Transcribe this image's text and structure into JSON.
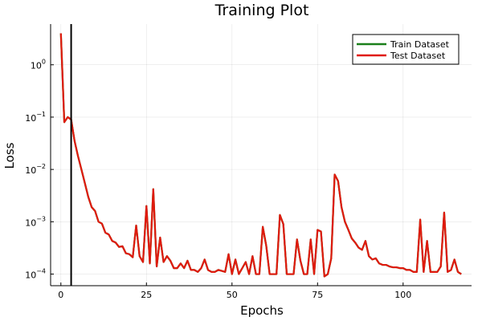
{
  "chart_data": {
    "type": "line",
    "title": "Training Plot",
    "xlabel": "Epochs",
    "ylabel": "Loss",
    "xlim": [
      -3,
      120
    ],
    "ylim": [
      6e-05,
      6
    ],
    "yscale": "log",
    "xticks": [
      0,
      25,
      50,
      75,
      100
    ],
    "xtick_labels": [
      "0",
      "25",
      "50",
      "75",
      "100"
    ],
    "yticks": [
      0.0001,
      0.001,
      0.01,
      0.1,
      1
    ],
    "ytick_labels": [
      {
        "base": "10",
        "exp": "−4"
      },
      {
        "base": "10",
        "exp": "−3"
      },
      {
        "base": "10",
        "exp": "−2"
      },
      {
        "base": "10",
        "exp": "−1"
      },
      {
        "base": "10",
        "exp": "0"
      }
    ],
    "grid": true,
    "legend_position": "top-right",
    "vline": {
      "x": 3,
      "color": "#000000"
    },
    "series": [
      {
        "name": "Train Dataset",
        "color": "#1a7f1a",
        "x": [
          0,
          1,
          2,
          3,
          4,
          5,
          6,
          7,
          8,
          9,
          10,
          11,
          12,
          13,
          14,
          15,
          16,
          17,
          18,
          19,
          20,
          21,
          22,
          23,
          24,
          25,
          26,
          27,
          28,
          29,
          30,
          31,
          32,
          33,
          34,
          35,
          36,
          37,
          38,
          39,
          40,
          41,
          42,
          43,
          44,
          45,
          46,
          47,
          48,
          49,
          50,
          51,
          52,
          53,
          54,
          55,
          56,
          57,
          58,
          59,
          60,
          61,
          62,
          63,
          64,
          65,
          66,
          67,
          68,
          69,
          70,
          71,
          72,
          73,
          74,
          75,
          76,
          77,
          78,
          79,
          80,
          81,
          82,
          83,
          84,
          85,
          86,
          87,
          88,
          89,
          90,
          91,
          92,
          93,
          94,
          95,
          96,
          97,
          98,
          99,
          100,
          101,
          102,
          103,
          104,
          105,
          106,
          107,
          108,
          109,
          110,
          111,
          112,
          113,
          114,
          115,
          116,
          117
        ],
        "y": [
          4.0,
          0.08,
          0.1,
          0.09,
          0.035,
          0.018,
          0.01,
          0.0055,
          0.003,
          0.0019,
          0.0016,
          0.001,
          0.00092,
          0.00062,
          0.00057,
          0.00043,
          0.0004,
          0.00033,
          0.00034,
          0.00025,
          0.00024,
          0.00021,
          0.00085,
          0.00022,
          0.00017,
          0.002,
          0.00016,
          0.0042,
          0.00014,
          0.0005,
          0.00017,
          0.00022,
          0.00018,
          0.00013,
          0.00013,
          0.00016,
          0.00013,
          0.00018,
          0.00012,
          0.00012,
          0.00011,
          0.00013,
          0.00019,
          0.00012,
          0.00011,
          0.00011,
          0.00012,
          0.000115,
          0.00011,
          0.00024,
          0.0001,
          0.00019,
          0.0001,
          0.00013,
          0.00017,
          0.0001,
          0.00022,
          0.0001,
          0.0001,
          0.0008,
          0.00035,
          0.0001,
          0.0001,
          0.0001,
          0.00135,
          0.0009,
          0.0001,
          0.0001,
          0.0001,
          0.00046,
          0.00018,
          0.0001,
          0.0001,
          0.00046,
          0.0001,
          0.0007,
          0.00065,
          9e-05,
          0.0001,
          0.0002,
          0.008,
          0.006,
          0.0019,
          0.001,
          0.0007,
          0.00048,
          0.0004,
          0.00032,
          0.00029,
          0.00043,
          0.00022,
          0.00019,
          0.0002,
          0.00016,
          0.00015,
          0.00015,
          0.00014,
          0.000135,
          0.000135,
          0.00013,
          0.00013,
          0.00012,
          0.00012,
          0.00011,
          0.00011,
          0.0011,
          0.00011,
          0.00043,
          0.00011,
          0.00011,
          0.00011,
          0.00014,
          0.0015,
          0.00011,
          0.00012,
          0.00019,
          0.00011,
          0.0001
        ]
      },
      {
        "name": "Test Dataset",
        "color": "#e01a0e",
        "x": [
          0,
          1,
          2,
          3,
          4,
          5,
          6,
          7,
          8,
          9,
          10,
          11,
          12,
          13,
          14,
          15,
          16,
          17,
          18,
          19,
          20,
          21,
          22,
          23,
          24,
          25,
          26,
          27,
          28,
          29,
          30,
          31,
          32,
          33,
          34,
          35,
          36,
          37,
          38,
          39,
          40,
          41,
          42,
          43,
          44,
          45,
          46,
          47,
          48,
          49,
          50,
          51,
          52,
          53,
          54,
          55,
          56,
          57,
          58,
          59,
          60,
          61,
          62,
          63,
          64,
          65,
          66,
          67,
          68,
          69,
          70,
          71,
          72,
          73,
          74,
          75,
          76,
          77,
          78,
          79,
          80,
          81,
          82,
          83,
          84,
          85,
          86,
          87,
          88,
          89,
          90,
          91,
          92,
          93,
          94,
          95,
          96,
          97,
          98,
          99,
          100,
          101,
          102,
          103,
          104,
          105,
          106,
          107,
          108,
          109,
          110,
          111,
          112,
          113,
          114,
          115,
          116,
          117
        ],
        "y": [
          4.0,
          0.08,
          0.1,
          0.09,
          0.035,
          0.018,
          0.01,
          0.0055,
          0.003,
          0.0019,
          0.0016,
          0.001,
          0.00092,
          0.00062,
          0.00057,
          0.00043,
          0.0004,
          0.00033,
          0.00034,
          0.00025,
          0.00024,
          0.00021,
          0.00085,
          0.00022,
          0.00017,
          0.002,
          0.00016,
          0.0042,
          0.00014,
          0.0005,
          0.00017,
          0.00022,
          0.00018,
          0.00013,
          0.00013,
          0.00016,
          0.00013,
          0.00018,
          0.00012,
          0.00012,
          0.00011,
          0.00013,
          0.00019,
          0.00012,
          0.00011,
          0.00011,
          0.00012,
          0.000115,
          0.00011,
          0.00024,
          0.0001,
          0.00019,
          0.0001,
          0.00013,
          0.00017,
          0.0001,
          0.00022,
          0.0001,
          0.0001,
          0.0008,
          0.00035,
          0.0001,
          0.0001,
          0.0001,
          0.00135,
          0.0009,
          0.0001,
          0.0001,
          0.0001,
          0.00046,
          0.00018,
          0.0001,
          0.0001,
          0.00046,
          0.0001,
          0.0007,
          0.00065,
          9e-05,
          0.0001,
          0.0002,
          0.008,
          0.006,
          0.0019,
          0.001,
          0.0007,
          0.00048,
          0.0004,
          0.00032,
          0.00029,
          0.00043,
          0.00022,
          0.00019,
          0.0002,
          0.00016,
          0.00015,
          0.00015,
          0.00014,
          0.000135,
          0.000135,
          0.00013,
          0.00013,
          0.00012,
          0.00012,
          0.00011,
          0.00011,
          0.0011,
          0.00011,
          0.00043,
          0.00011,
          0.00011,
          0.00011,
          0.00014,
          0.0015,
          0.00011,
          0.00012,
          0.00019,
          0.00011,
          0.0001
        ]
      }
    ]
  }
}
